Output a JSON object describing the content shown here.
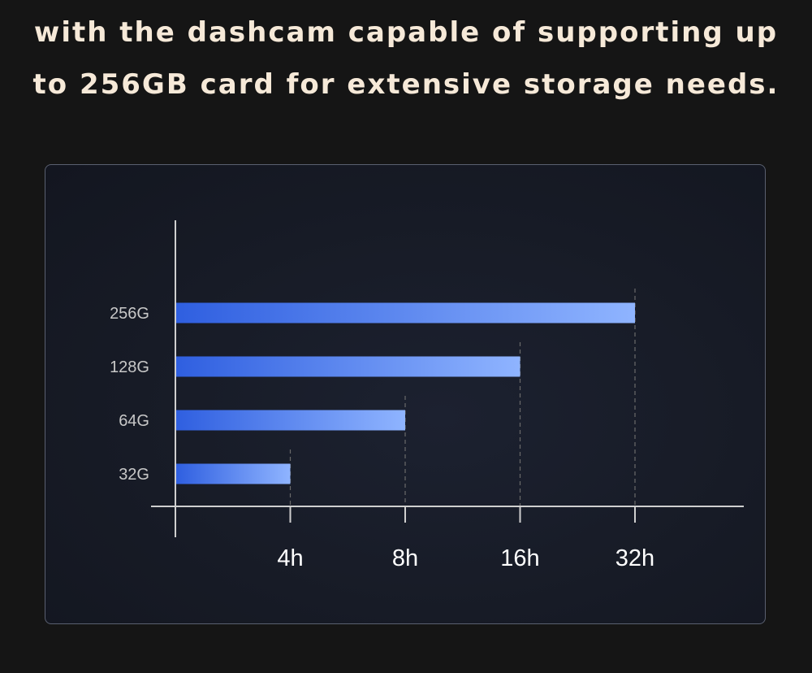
{
  "headline": {
    "line1": "with the dashcam capable of supporting up",
    "line2": "to 256GB card for extensive storage needs."
  },
  "colors": {
    "bar_start": "#2f5fe0",
    "bar_end": "#8fb4ff",
    "axis": "#cfcfcf",
    "grid": "#6a6a6a",
    "category_text": "#c8c8c8",
    "tick_text": "#ffffff"
  },
  "chart_data": {
    "type": "bar",
    "orientation": "horizontal",
    "title": "",
    "xlabel": "",
    "ylabel": "",
    "categories": [
      "256G",
      "128G",
      "64G",
      "32G"
    ],
    "values": [
      32,
      16,
      8,
      4
    ],
    "x_ticks": [
      4,
      8,
      16,
      32
    ],
    "x_tick_labels": [
      "4h",
      "8h",
      "16h",
      "32h"
    ],
    "x_scale": "log2",
    "grid": "vertical dashed at ticks",
    "legend": "none"
  }
}
